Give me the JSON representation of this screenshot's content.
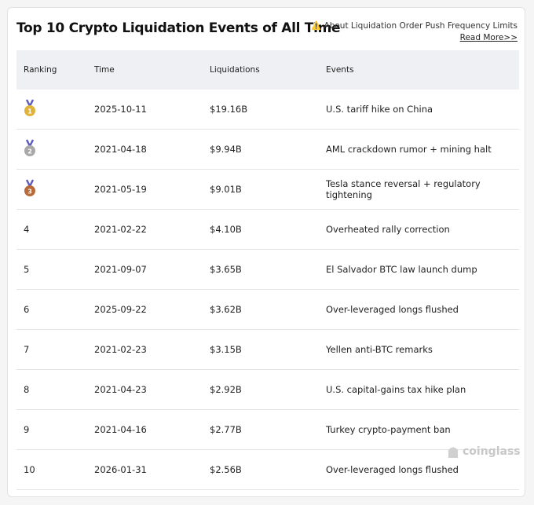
{
  "header": {
    "title": "Top 10 Crypto Liquidation Events of All Time",
    "notice": "About Liquidation Order Push Frequency Limits",
    "link": "Read More>>"
  },
  "table": {
    "columns": [
      "Ranking",
      "Time",
      "Liquidations",
      "Events"
    ],
    "rows": [
      [
        1,
        "2025-10-11",
        "$19.16B",
        "U.S. tariff hike on China"
      ],
      [
        2,
        "2021-04-18",
        "$9.94B",
        "AML crackdown rumor + mining halt"
      ],
      [
        3,
        "2021-05-19",
        "$9.01B",
        "Tesla stance reversal + regulatory tightening"
      ],
      [
        4,
        "2021-02-22",
        "$4.10B",
        "Overheated rally correction"
      ],
      [
        5,
        "2021-09-07",
        "$3.65B",
        "El Salvador BTC law launch dump"
      ],
      [
        6,
        "2025-09-22",
        "$3.62B",
        "Over-leveraged longs flushed"
      ],
      [
        7,
        "2021-02-23",
        "$3.15B",
        "Yellen anti-BTC remarks"
      ],
      [
        8,
        "2021-04-23",
        "$2.92B",
        "U.S. capital-gains tax hike plan"
      ],
      [
        9,
        "2021-04-16",
        "$2.77B",
        "Turkey crypto-payment ban"
      ],
      [
        10,
        "2026-01-31",
        "$2.56B",
        "Over-leveraged longs flushed"
      ]
    ]
  },
  "watermark": "coinglass"
}
